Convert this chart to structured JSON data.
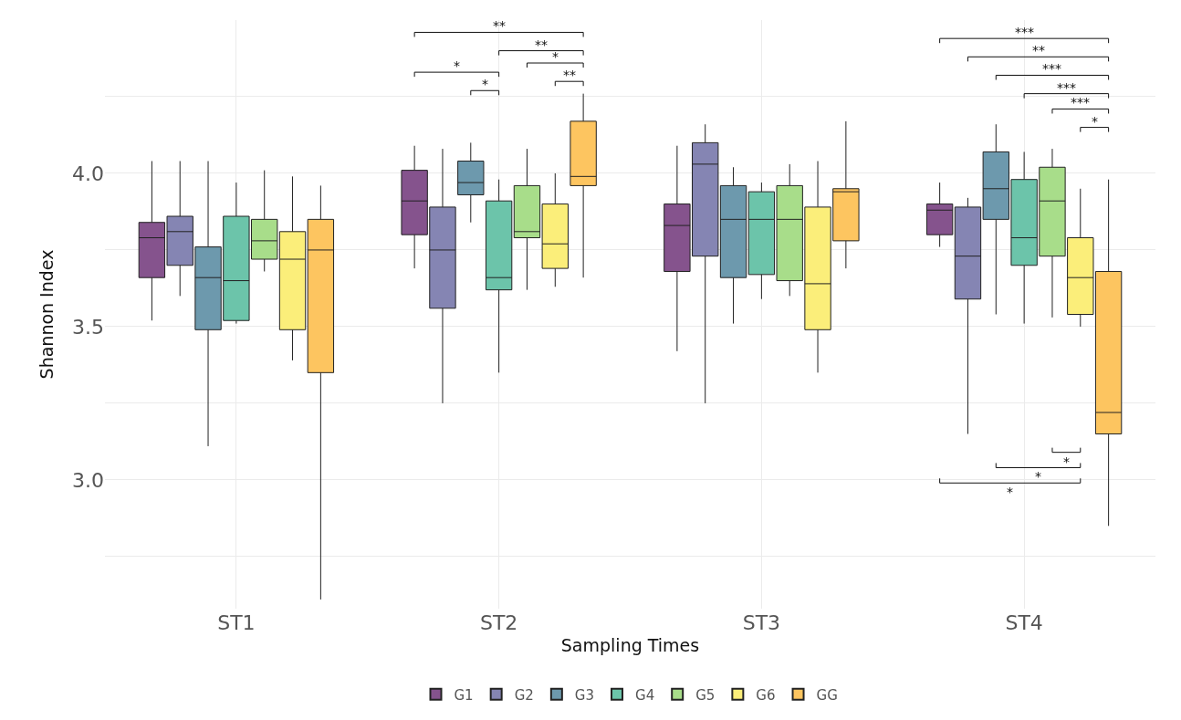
{
  "chart_data": {
    "type": "box",
    "xlabel": "Sampling Times",
    "ylabel": "Shannon Index",
    "categories": [
      "ST1",
      "ST2",
      "ST3",
      "ST4"
    ],
    "ylim": [
      2.58,
      4.5
    ],
    "yticks": [
      {
        "value": 2.75,
        "label": null
      },
      {
        "value": 3,
        "label": "3.0"
      },
      {
        "value": 3.25,
        "label": null
      },
      3.5,
      {
        "value": 3.75,
        "label": null
      },
      {
        "value": 4,
        "label": "4.0"
      },
      {
        "value": 4.25,
        "label": null
      }
    ],
    "grid": true,
    "legend": "bottom",
    "series": [
      {
        "name": "G1",
        "color": "#85538d",
        "boxes": [
          {
            "low": 3.52,
            "q1": 3.66,
            "median": 3.79,
            "q3": 3.84,
            "high": 4.04
          },
          {
            "low": 3.69,
            "q1": 3.8,
            "median": 3.91,
            "q3": 4.01,
            "high": 4.09
          },
          {
            "low": 3.42,
            "q1": 3.68,
            "median": 3.83,
            "q3": 3.9,
            "high": 4.09
          },
          {
            "low": 3.76,
            "q1": 3.8,
            "median": 3.88,
            "q3": 3.9,
            "high": 3.97
          }
        ]
      },
      {
        "name": "G2",
        "color": "#8585b3",
        "boxes": [
          {
            "low": 3.6,
            "q1": 3.7,
            "median": 3.81,
            "q3": 3.86,
            "high": 4.04
          },
          {
            "low": 3.25,
            "q1": 3.56,
            "median": 3.75,
            "q3": 3.89,
            "high": 4.08
          },
          {
            "low": 3.25,
            "q1": 3.73,
            "median": 4.03,
            "q3": 4.1,
            "high": 4.16
          },
          {
            "low": 3.15,
            "q1": 3.59,
            "median": 3.73,
            "q3": 3.89,
            "high": 3.92
          }
        ]
      },
      {
        "name": "G3",
        "color": "#6d99ad",
        "boxes": [
          {
            "low": 3.11,
            "q1": 3.49,
            "median": 3.66,
            "q3": 3.76,
            "high": 4.04
          },
          {
            "low": 3.84,
            "q1": 3.93,
            "median": 3.97,
            "q3": 4.04,
            "high": 4.1
          },
          {
            "low": 3.51,
            "q1": 3.66,
            "median": 3.85,
            "q3": 3.96,
            "high": 4.02
          },
          {
            "low": 3.54,
            "q1": 3.85,
            "median": 3.95,
            "q3": 4.07,
            "high": 4.16
          }
        ]
      },
      {
        "name": "G4",
        "color": "#6cc4aa",
        "boxes": [
          {
            "low": 3.51,
            "q1": 3.52,
            "median": 3.65,
            "q3": 3.86,
            "high": 3.97
          },
          {
            "low": 3.35,
            "q1": 3.62,
            "median": 3.66,
            "q3": 3.91,
            "high": 3.98
          },
          {
            "low": 3.59,
            "q1": 3.67,
            "median": 3.85,
            "q3": 3.94,
            "high": 3.97
          },
          {
            "low": 3.51,
            "q1": 3.7,
            "median": 3.79,
            "q3": 3.98,
            "high": 4.07
          }
        ]
      },
      {
        "name": "G5",
        "color": "#a8dd8a",
        "boxes": [
          {
            "low": 3.68,
            "q1": 3.72,
            "median": 3.78,
            "q3": 3.85,
            "high": 4.01
          },
          {
            "low": 3.62,
            "q1": 3.79,
            "median": 3.81,
            "q3": 3.96,
            "high": 4.08
          },
          {
            "low": 3.6,
            "q1": 3.65,
            "median": 3.85,
            "q3": 3.96,
            "high": 4.03
          },
          {
            "low": 3.53,
            "q1": 3.73,
            "median": 3.91,
            "q3": 4.02,
            "high": 4.08
          }
        ]
      },
      {
        "name": "G6",
        "color": "#fbee7a",
        "boxes": [
          {
            "low": 3.39,
            "q1": 3.49,
            "median": 3.72,
            "q3": 3.81,
            "high": 3.99
          },
          {
            "low": 3.63,
            "q1": 3.69,
            "median": 3.77,
            "q3": 3.9,
            "high": 4.0
          },
          {
            "low": 3.35,
            "q1": 3.49,
            "median": 3.64,
            "q3": 3.89,
            "high": 4.04
          },
          {
            "low": 3.5,
            "q1": 3.54,
            "median": 3.66,
            "q3": 3.79,
            "high": 3.95
          }
        ]
      },
      {
        "name": "GG",
        "color": "#fdc560",
        "boxes": [
          {
            "low": 2.61,
            "q1": 3.35,
            "median": 3.75,
            "q3": 3.85,
            "high": 3.96
          },
          {
            "low": 3.66,
            "q1": 3.96,
            "median": 3.99,
            "q3": 4.17,
            "high": 4.26
          },
          {
            "low": 3.69,
            "q1": 3.78,
            "median": 3.94,
            "q3": 3.95,
            "high": 4.17
          },
          {
            "low": 2.85,
            "q1": 3.15,
            "median": 3.22,
            "q3": 3.68,
            "high": 3.98
          }
        ]
      }
    ],
    "annotations": [
      "**",
      "**",
      "*",
      "*",
      "**",
      "*",
      "***",
      "**",
      "***",
      "***",
      "***",
      "*",
      "*",
      "*",
      "*"
    ]
  }
}
